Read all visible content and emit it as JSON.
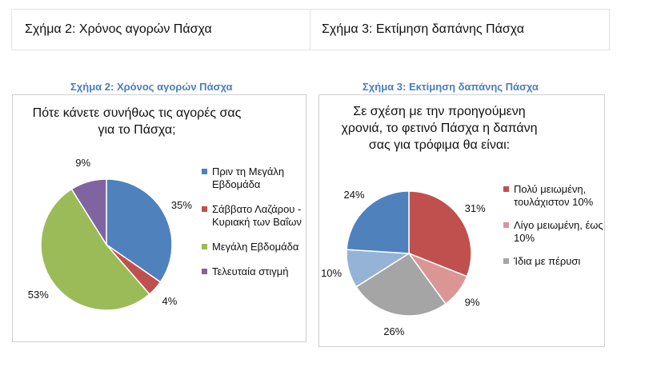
{
  "header_table": {
    "cell1": "Σχήμα 2: Χρόνος αγορών Πάσχα",
    "cell2": "Σχήμα 3: Εκτίμηση δαπάνης Πάσχα"
  },
  "chart_data": [
    {
      "type": "pie",
      "caption": "Σχήμα 2: Χρόνος αγορών Πάσχα",
      "title_lines": [
        "Πότε κάνετε συνήθως τις αγορές σας",
        "για το Πάσχα;"
      ],
      "slices": [
        {
          "label": "Πριν τη Μεγάλη Εβδομάδα",
          "value": 35,
          "value_label": "35%",
          "color": "#4f81bd"
        },
        {
          "label": "Σάββατο Λαζάρου - Κυριακή των Βαΐων",
          "value": 4,
          "value_label": "4%",
          "color": "#c0504d"
        },
        {
          "label": "Μεγάλη Εβδομάδα",
          "value": 53,
          "value_label": "53%",
          "color": "#9bbb59"
        },
        {
          "label": "Τελευταία στιγμή",
          "value": 9,
          "value_label": "9%",
          "color": "#8064a2"
        }
      ],
      "legend_position": "right"
    },
    {
      "type": "pie",
      "caption": "Σχήμα 3: Εκτίμηση δαπάνης Πάσχα",
      "title_lines": [
        "Σε σχέση με την προηγούμενη",
        "χρονιά, το φετινό Πάσχα η δαπάνη",
        "σας για τρόφιμα θα είναι:"
      ],
      "slices": [
        {
          "label": "Πολύ μειωμένη, τουλάχιστον 10%",
          "value": 31,
          "value_label": "31%",
          "color": "#c0504d"
        },
        {
          "label": "Λίγο μειωμένη, έως 10%",
          "value": 9,
          "value_label": "9%",
          "color": "#d99694"
        },
        {
          "label": "Ίδια με πέρυσι",
          "value": 26,
          "value_label": "26%",
          "color": "#a5a5a5"
        },
        {
          "label": "",
          "value": 10,
          "value_label": "10%",
          "color": "#95b3d7"
        },
        {
          "label": "",
          "value": 24,
          "value_label": "24%",
          "color": "#4f81bd"
        }
      ],
      "legend_position": "right"
    }
  ]
}
